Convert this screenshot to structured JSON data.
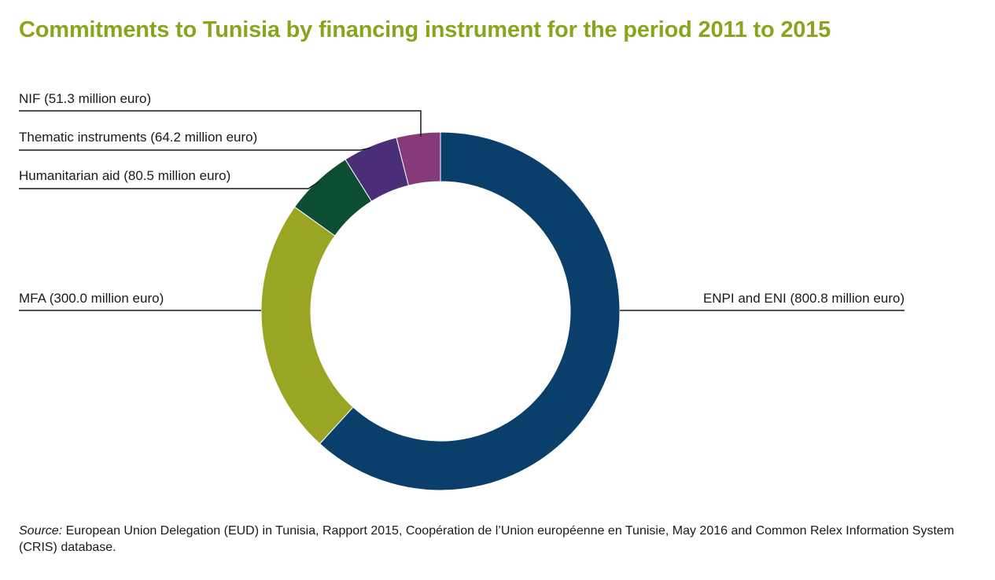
{
  "title": "Commitments to Tunisia by financing instrument for the period 2011 to 2015",
  "source": {
    "prefix": "Source:",
    "text": "European Union Delegation (EUD) in Tunisia, Rapport 2015, Coopération de l’Union européenne en Tunisie, May 2016 and Common Relex Information System (CRIS) database."
  },
  "chart_data": {
    "type": "pie",
    "donut": true,
    "unit": "million euro",
    "slices": [
      {
        "label": "ENPI and ENI (800.8 million euro)",
        "category": "ENPI and ENI",
        "value": 800.8,
        "color": "#0b3f6b"
      },
      {
        "label": "MFA (300.0 million euro)",
        "category": "MFA",
        "value": 300.0,
        "color": "#9aa623"
      },
      {
        "label": "Humanitarian aid (80.5 million euro)",
        "category": "Humanitarian aid",
        "value": 80.5,
        "color": "#0b4e33"
      },
      {
        "label": "Thematic instruments (64.2 million euro)",
        "category": "Thematic instruments",
        "value": 64.2,
        "color": "#4a2e77"
      },
      {
        "label": "NIF (51.3 million euro)",
        "category": "NIF",
        "value": 51.3,
        "color": "#873a79"
      }
    ]
  }
}
